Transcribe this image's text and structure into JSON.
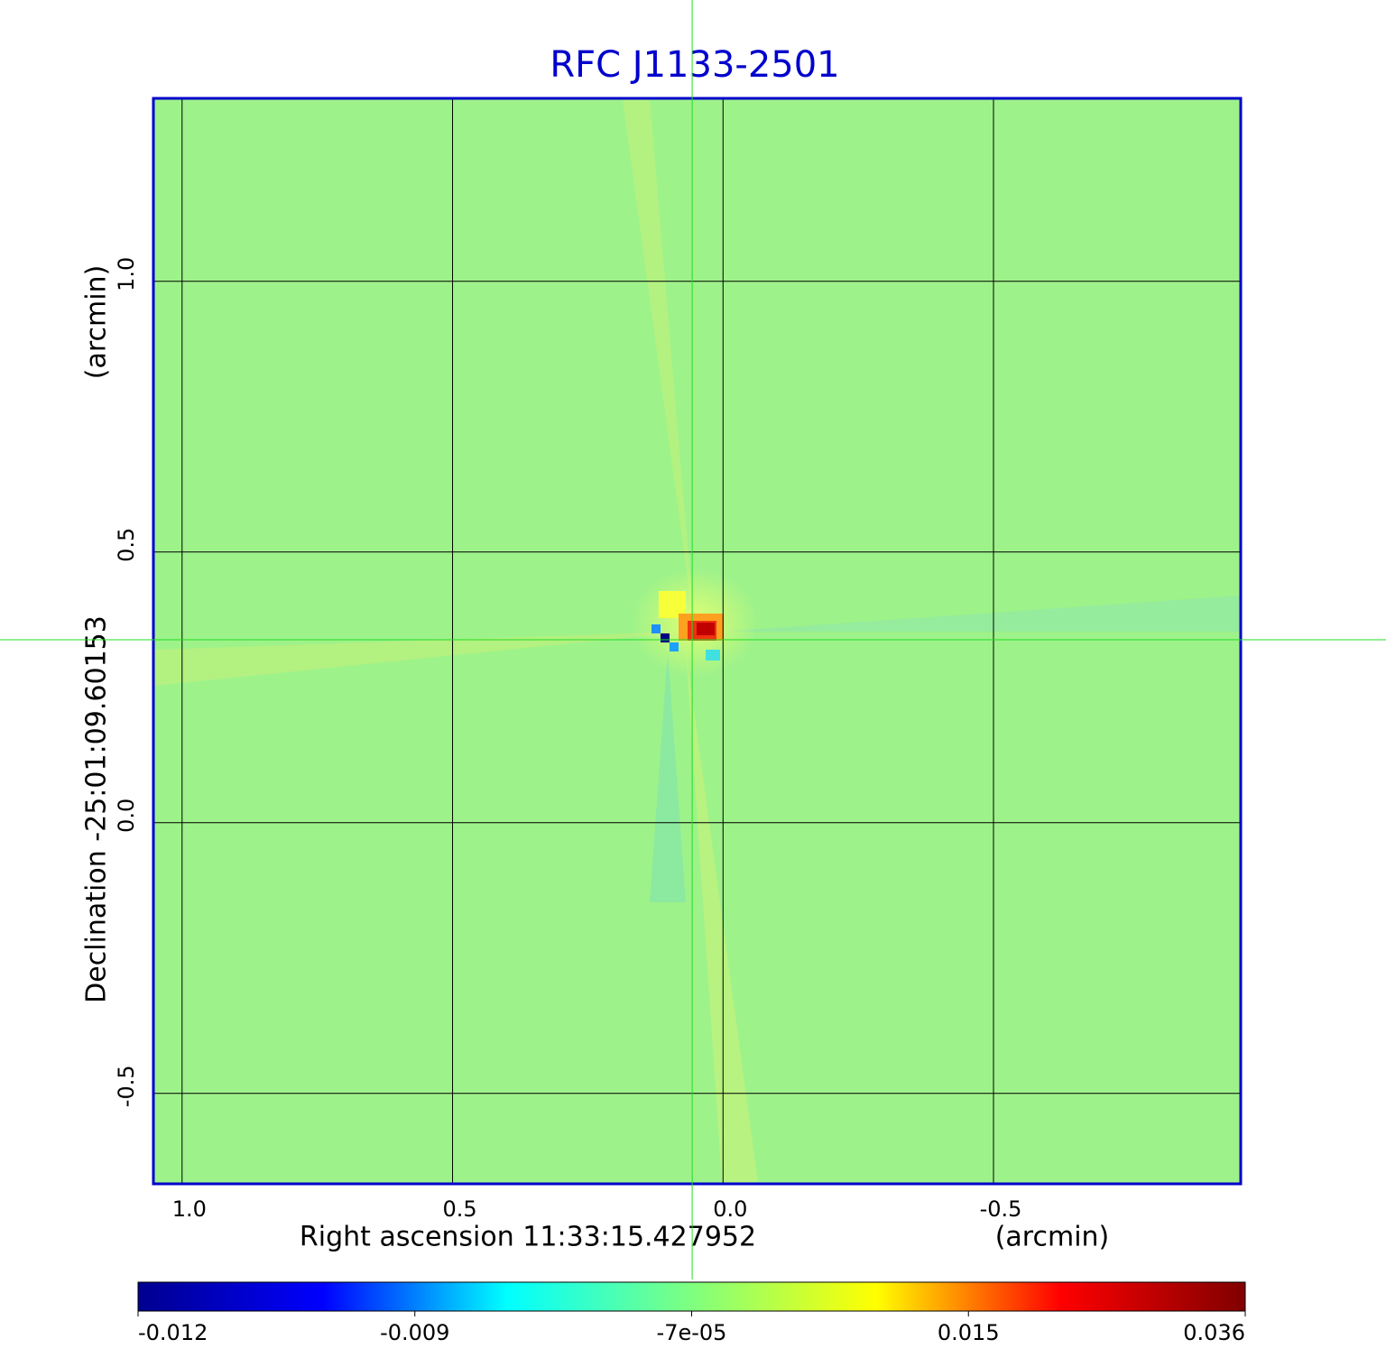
{
  "chart_data": {
    "type": "image",
    "title": "RFC J1133-2501",
    "xlabel": "Right ascension  11:33:15.427952",
    "xunit": "(arcmin)",
    "ylabel": "Declination  -25:01:09.60153",
    "yunit": "(arcmin)",
    "xlim": [
      1.053,
      -0.957
    ],
    "ylim": [
      -0.667,
      1.338
    ],
    "xticks": [
      {
        "value": 1,
        "label": "1.0"
      },
      0.5,
      {
        "value": 0,
        "label": "0.0"
      },
      -0.5
    ],
    "yticks": [
      -0.5,
      {
        "value": 0,
        "label": "0.0"
      },
      0.5,
      {
        "value": 1,
        "label": "1.0"
      }
    ],
    "grid": true,
    "crosshair": {
      "x": 0.057,
      "y": 0.338
    },
    "colorbar": {
      "range": [
        -0.012,
        0.036
      ],
      "ticks": [
        -0.012,
        -0.009,
        {
          "value": -7e-05,
          "label": "-7e-05"
        },
        0.015,
        0.036
      ]
    },
    "colormap": [
      "#00008f",
      "#0000ff",
      "#00ffff",
      "#7fff7f",
      "#ffff00",
      "#ff0000",
      "#800000"
    ]
  }
}
